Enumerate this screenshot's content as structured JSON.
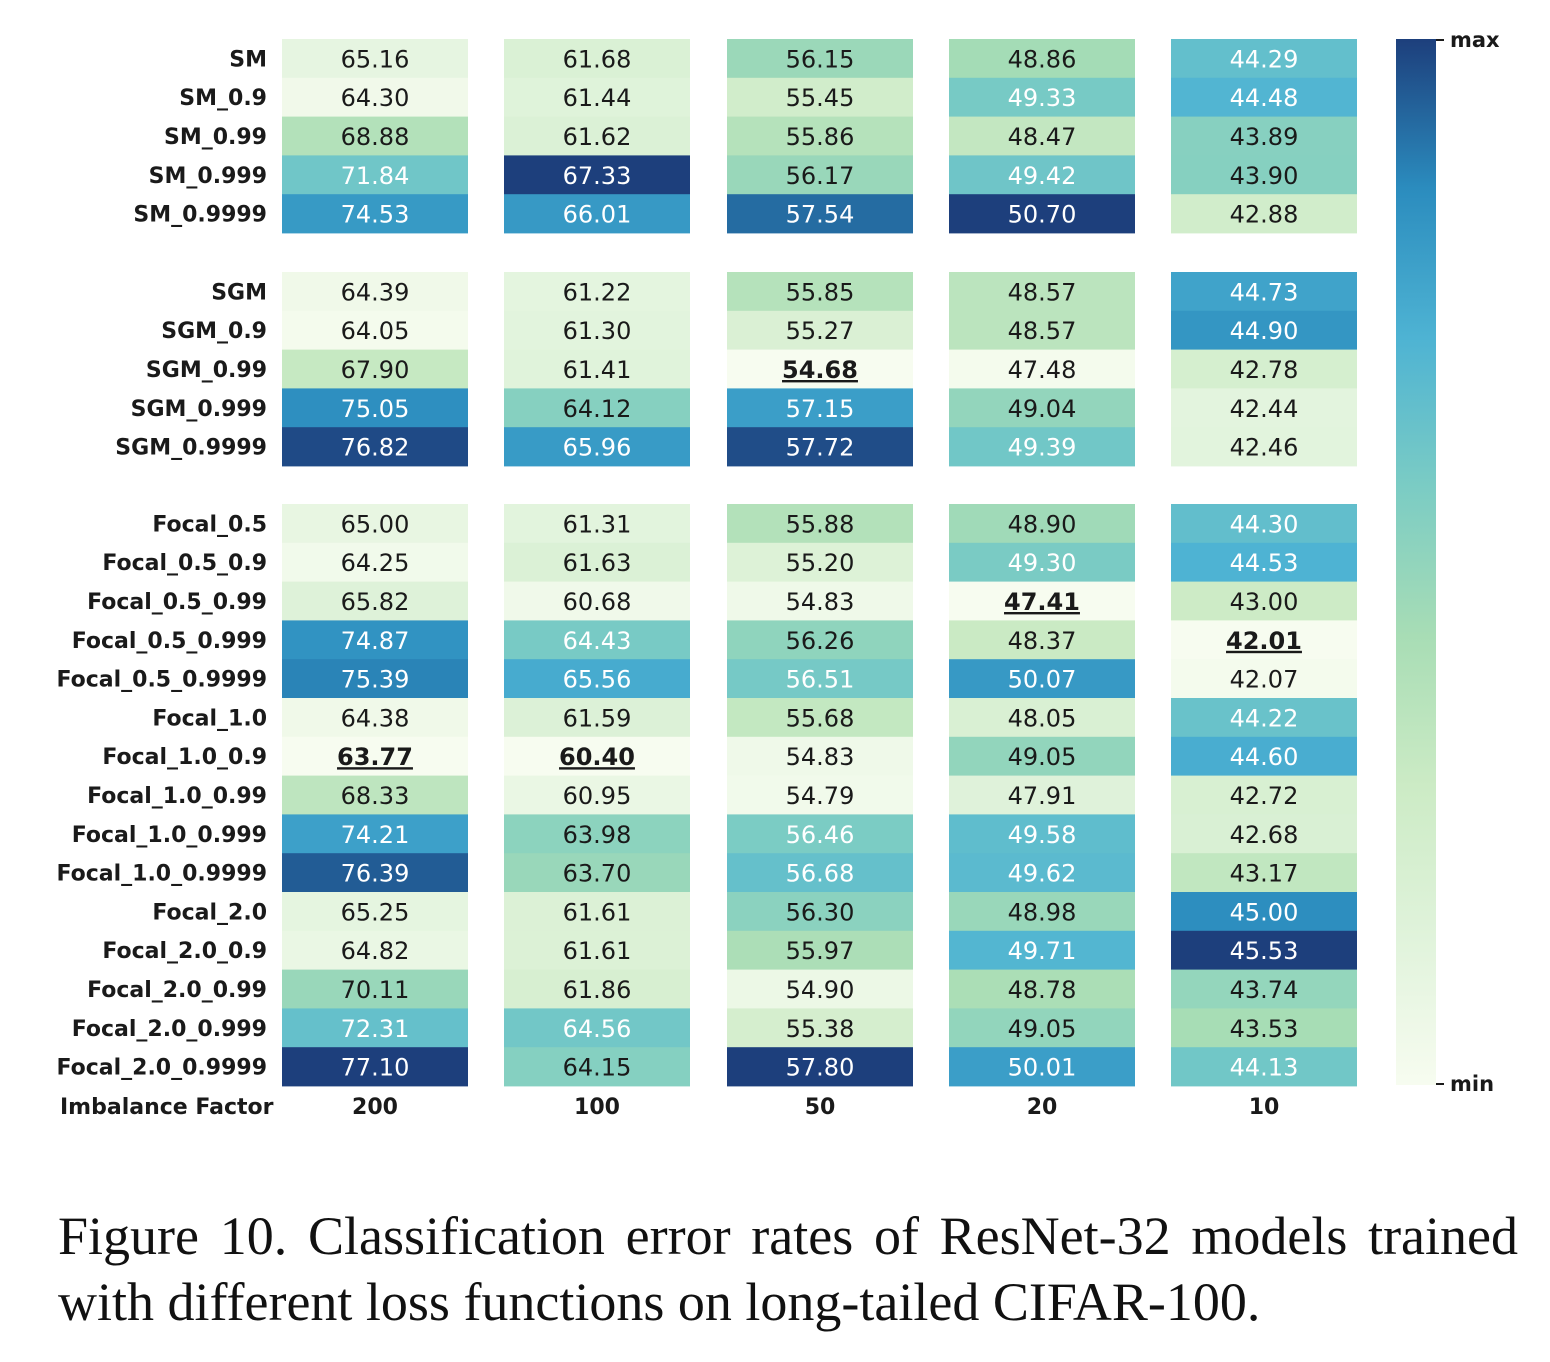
{
  "chart_data": {
    "type": "heatmap",
    "xlabel": "Imbalance Factor",
    "categories": [
      "200",
      "100",
      "50",
      "20",
      "10"
    ],
    "groups": [
      {
        "rows": [
          {
            "label": "SM",
            "values": [
              65.16,
              61.68,
              56.15,
              48.86,
              44.29
            ]
          },
          {
            "label": "SM_0.9",
            "values": [
              64.3,
              61.44,
              55.45,
              49.33,
              44.48
            ]
          },
          {
            "label": "SM_0.99",
            "values": [
              68.88,
              61.62,
              55.86,
              48.47,
              43.89
            ]
          },
          {
            "label": "SM_0.999",
            "values": [
              71.84,
              67.33,
              56.17,
              49.42,
              43.9
            ]
          },
          {
            "label": "SM_0.9999",
            "values": [
              74.53,
              66.01,
              57.54,
              50.7,
              42.88
            ]
          }
        ]
      },
      {
        "rows": [
          {
            "label": "SGM",
            "values": [
              64.39,
              61.22,
              55.85,
              48.57,
              44.73
            ]
          },
          {
            "label": "SGM_0.9",
            "values": [
              64.05,
              61.3,
              55.27,
              48.57,
              44.9
            ]
          },
          {
            "label": "SGM_0.99",
            "values": [
              67.9,
              61.41,
              54.68,
              47.48,
              42.78
            ]
          },
          {
            "label": "SGM_0.999",
            "values": [
              75.05,
              64.12,
              57.15,
              49.04,
              42.44
            ]
          },
          {
            "label": "SGM_0.9999",
            "values": [
              76.82,
              65.96,
              57.72,
              49.39,
              42.46
            ]
          }
        ]
      },
      {
        "rows": [
          {
            "label": "Focal_0.5",
            "values": [
              65.0,
              61.31,
              55.88,
              48.9,
              44.3
            ]
          },
          {
            "label": "Focal_0.5_0.9",
            "values": [
              64.25,
              61.63,
              55.2,
              49.3,
              44.53
            ]
          },
          {
            "label": "Focal_0.5_0.99",
            "values": [
              65.82,
              60.68,
              54.83,
              47.41,
              43.0
            ]
          },
          {
            "label": "Focal_0.5_0.999",
            "values": [
              74.87,
              64.43,
              56.26,
              48.37,
              42.01
            ]
          },
          {
            "label": "Focal_0.5_0.9999",
            "values": [
              75.39,
              65.56,
              56.51,
              50.07,
              42.07
            ]
          },
          {
            "label": "Focal_1.0",
            "values": [
              64.38,
              61.59,
              55.68,
              48.05,
              44.22
            ]
          },
          {
            "label": "Focal_1.0_0.9",
            "values": [
              63.77,
              60.4,
              54.83,
              49.05,
              44.6
            ]
          },
          {
            "label": "Focal_1.0_0.99",
            "values": [
              68.33,
              60.95,
              54.79,
              47.91,
              42.72
            ]
          },
          {
            "label": "Focal_1.0_0.999",
            "values": [
              74.21,
              63.98,
              56.46,
              49.58,
              42.68
            ]
          },
          {
            "label": "Focal_1.0_0.9999",
            "values": [
              76.39,
              63.7,
              56.68,
              49.62,
              43.17
            ]
          },
          {
            "label": "Focal_2.0",
            "values": [
              65.25,
              61.61,
              56.3,
              48.98,
              45.0
            ]
          },
          {
            "label": "Focal_2.0_0.9",
            "values": [
              64.82,
              61.61,
              55.97,
              49.71,
              45.53
            ]
          },
          {
            "label": "Focal_2.0_0.99",
            "values": [
              70.11,
              61.86,
              54.9,
              48.78,
              43.74
            ]
          },
          {
            "label": "Focal_2.0_0.999",
            "values": [
              72.31,
              64.56,
              55.38,
              49.05,
              43.53
            ]
          },
          {
            "label": "Focal_2.0_0.9999",
            "values": [
              77.1,
              64.15,
              57.8,
              50.01,
              44.13
            ]
          }
        ]
      }
    ],
    "best_per_column": [
      {
        "row": "Focal_1.0_0.9",
        "column": "200",
        "value": 63.77
      },
      {
        "row": "Focal_1.0_0.9",
        "column": "100",
        "value": 60.4
      },
      {
        "row": "SGM_0.99",
        "column": "50",
        "value": 54.68
      },
      {
        "row": "Focal_0.5_0.99",
        "column": "20",
        "value": 47.41
      },
      {
        "row": "Focal_0.5_0.999",
        "column": "10",
        "value": 42.01
      }
    ],
    "colorbar": {
      "max_label": "max",
      "min_label": "min",
      "colormap": "GnBu",
      "normalization": "per-column"
    },
    "colors": {
      "stops": [
        "#f7fcf0",
        "#e0f3db",
        "#ccebc5",
        "#a8ddb5",
        "#7bccc4",
        "#4eb3d3",
        "#2b8cbe",
        "#1d3f7c"
      ],
      "text_dark": "#1a1a1a",
      "text_light": "#ffffff"
    }
  },
  "caption": "Figure 10. Classification error rates of ResNet-32 models trained with different loss functions on long-tailed CIFAR-100."
}
